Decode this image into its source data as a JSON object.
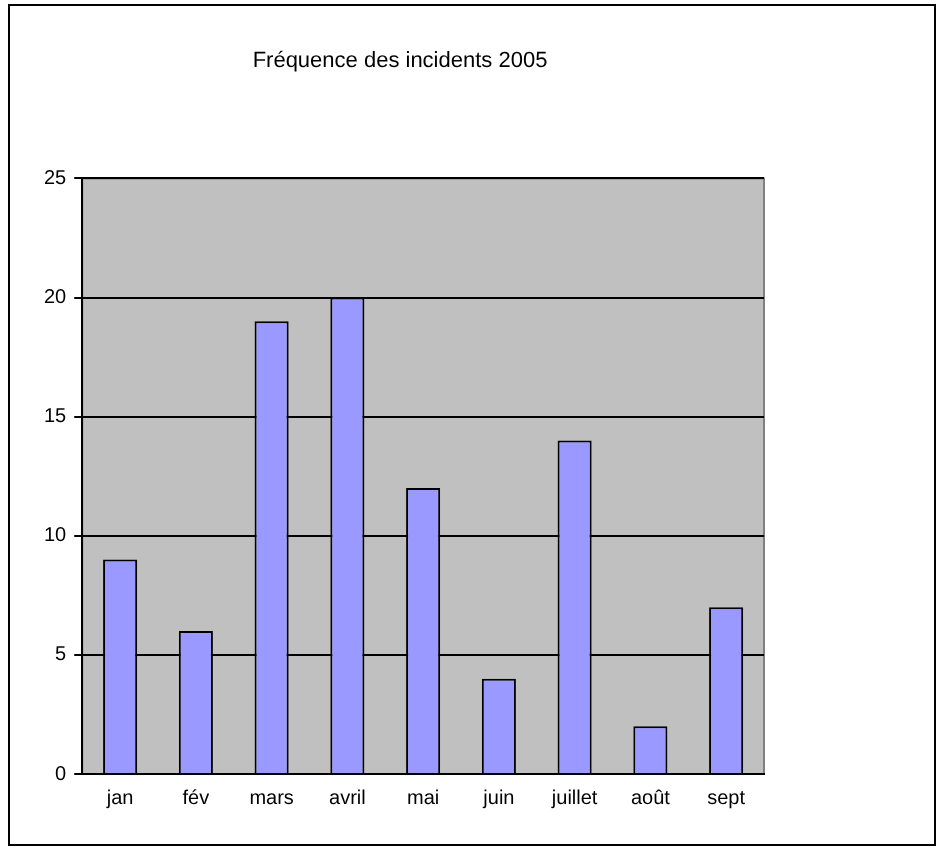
{
  "chart_data": {
    "type": "bar",
    "title": "Fréquence des incidents 2005",
    "categories": [
      "jan",
      "fév",
      "mars",
      "avril",
      "mai",
      "juin",
      "juillet",
      "août",
      "sept"
    ],
    "values": [
      9,
      6,
      19,
      20,
      12,
      4,
      14,
      2,
      7
    ],
    "color": "#9999ff",
    "ylim": [
      0,
      25
    ],
    "yticks": [
      0,
      5,
      10,
      15,
      20,
      25
    ],
    "grid": "y",
    "legend": false
  }
}
